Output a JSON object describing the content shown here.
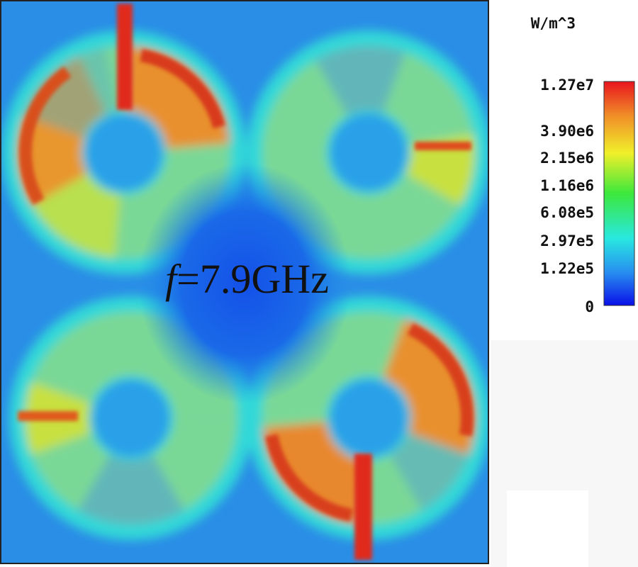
{
  "annotation": {
    "variable": "f",
    "text": "=7.9GHz"
  },
  "legend": {
    "unit": "W/m^3",
    "ticks": [
      "1.27e7",
      "3.90e6",
      "2.15e6",
      "1.16e6",
      "6.08e5",
      "2.97e5",
      "1.22e5",
      "0"
    ]
  }
}
